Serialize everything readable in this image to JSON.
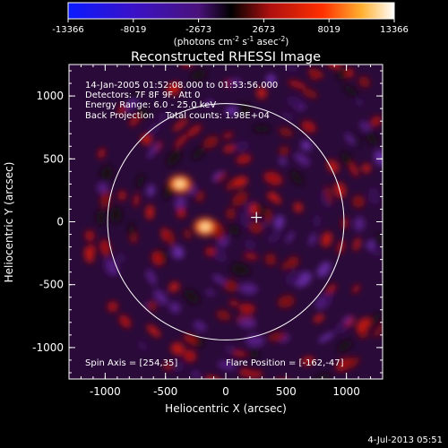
{
  "colorbar": {
    "ticks": [
      "-13366",
      "-8019",
      "-2673",
      "2673",
      "8019",
      "13366"
    ],
    "min": -13366,
    "max": 13366,
    "unit_label": {
      "prefix": "(photons cm",
      "sup1": "-2",
      "mid1": " s",
      "sup2": "-1",
      "mid2": " asec",
      "sup3": "-2",
      "suffix": ")"
    }
  },
  "chart_data": {
    "type": "heatmap",
    "title": "Reconstructed RHESSI Image",
    "xlabel": "Heliocentric X (arcsec)",
    "ylabel": "Heliocentric Y (arcsec)",
    "xlim": [
      -1300,
      1300
    ],
    "ylim": [
      -1250,
      1250
    ],
    "x_ticks": [
      "-1000",
      "-500",
      "0",
      "500",
      "1000"
    ],
    "y_ticks": [
      "-1000",
      "-500",
      "0",
      "500",
      "1000"
    ],
    "x_tick_values": [
      -1000,
      -500,
      0,
      500,
      1000
    ],
    "y_tick_values": [
      -1000,
      -500,
      0,
      500,
      1000
    ],
    "annotations": [
      "14-Jan-2005 01:52:08.000 to 01:53:56.000",
      "Detectors: 7F 8F 9F, Att 0",
      "Energy Range: 6.0 - 25.0 keV",
      "Back Projection    Total counts: 1.98E+04"
    ],
    "spin_axis": "Spin Axis = [254,35]",
    "flare_position_label": "Flare Position = [-162,-47]",
    "spin_axis_xy": [
      254,
      35
    ],
    "solar_disk": {
      "center": [
        0,
        0
      ],
      "radius": 980
    },
    "sources": [
      {
        "x": -380,
        "y": 300,
        "peak": 13366
      },
      {
        "x": -170,
        "y": -40,
        "peak": 13366
      }
    ],
    "colors": {
      "negative": "#1010ff",
      "zero": "#000000",
      "low_positive": "#c00000",
      "high_positive": "#ffffff"
    }
  },
  "footer": {
    "timestamp": "4-Jul-2013 05:51"
  }
}
